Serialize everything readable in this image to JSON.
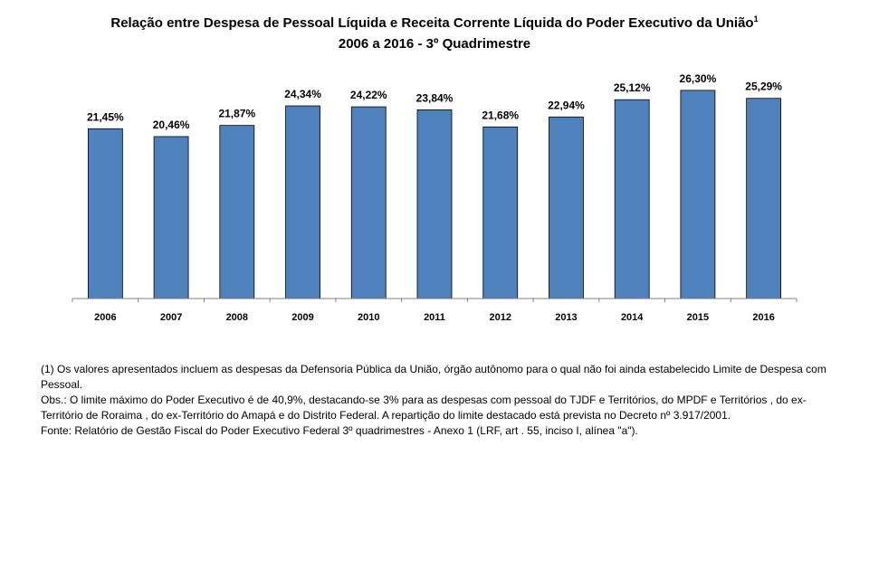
{
  "chart_data": {
    "type": "bar",
    "title": "Relação entre Despesa de Pessoal  Líquida e Receita Corrente Líquida do Poder Executivo da União",
    "title_footnote_marker": "1",
    "subtitle": "2006 a 2016 - 3º Quadrimestre",
    "categories": [
      "2006",
      "2007",
      "2008",
      "2009",
      "2010",
      "2011",
      "2012",
      "2013",
      "2014",
      "2015",
      "2016"
    ],
    "values": [
      21.45,
      20.46,
      21.87,
      24.34,
      24.22,
      23.84,
      21.68,
      22.94,
      25.12,
      26.3,
      25.29
    ],
    "data_labels": [
      "21,45%",
      "20,46%",
      "21,87%",
      "24,34%",
      "24,22%",
      "23,84%",
      "21,68%",
      "22,94%",
      "25,12%",
      "26,30%",
      "25,29%"
    ],
    "ylim": [
      0,
      30
    ],
    "grid": false,
    "bar_color": "#4F81BD",
    "bar_edge_color": "#000000"
  },
  "notes": {
    "line1": "(1) Os  valores apresentados incluem as despesas da Defensoria Pública da União, órgão autônomo para o qual não foi ainda  estabelecido Limite de Despesa com Pessoal.",
    "line2": "Obs.: O limite máximo do Poder Executivo é de 40,9%, destacando-se 3% para as despesas com pessoal do TJDF e Territórios, do MPDF e Territórios ,  do ex-Território de Roraima , do ex-Território do Amapá e do Distrito Federal. A repartição do limite destacado está prevista no Decreto nº 3.917/2001.",
    "line3": "Fonte: Relatório de Gestão Fiscal  do Poder Executivo Federal 3º quadrimestres - Anexo 1 (LRF, art . 55, inciso I, alínea \"a\")."
  }
}
